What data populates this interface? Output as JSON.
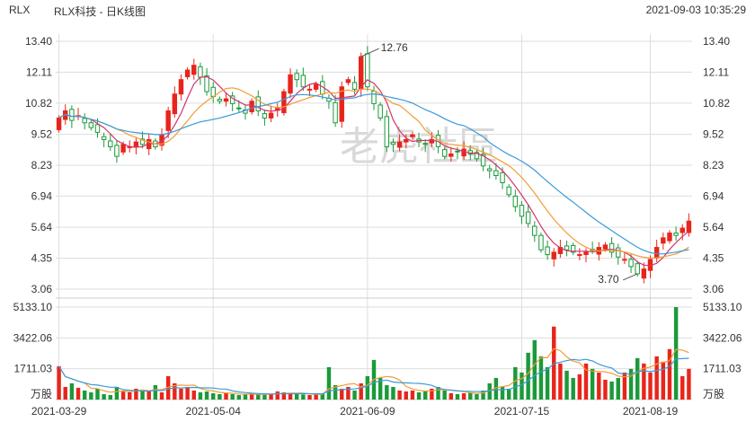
{
  "header": {
    "symbol": "RLX",
    "name": "RLX科技 - 日K线图",
    "datetime": "2021-09-03 10:35:29"
  },
  "watermark": "老虎社區",
  "colors": {
    "up": "#e8251b",
    "down": "#1a9a3a",
    "ma5": "#d6336c",
    "ma10": "#f39c33",
    "ma20": "#3a9ad9",
    "vol_ma1": "#f39c33",
    "vol_ma2": "#3a9ad9",
    "grid": "#dddddd",
    "text": "#333333"
  },
  "chart_data": [
    {
      "type": "candlestick",
      "title": "RLX科技 - 日K线图",
      "y_ticks": [
        "13.40",
        "12.11",
        "10.82",
        "9.52",
        "8.23",
        "6.94",
        "5.64",
        "4.35",
        "3.06"
      ],
      "ylim": [
        3.06,
        13.4
      ],
      "x_tick_labels": [
        "2021-03-29",
        "2021-05-04",
        "2021-06-09",
        "2021-07-15",
        "2021-08-19"
      ],
      "annotations": [
        {
          "text": "12.76",
          "value": 12.76
        },
        {
          "text": "3.70",
          "value": 3.7
        }
      ],
      "ohlc_close": [
        10.2,
        10.5,
        10.1,
        10.3,
        10.0,
        9.8,
        9.6,
        9.3,
        9.0,
        8.6,
        9.1,
        9.0,
        9.2,
        9.1,
        9.3,
        9.0,
        9.5,
        10.5,
        11.2,
        11.8,
        12.2,
        12.4,
        11.9,
        11.3,
        11.1,
        10.9,
        11.0,
        10.8,
        10.6,
        10.4,
        10.9,
        10.5,
        10.2,
        10.4,
        10.6,
        11.3,
        12.0,
        11.8,
        11.5,
        11.4,
        11.6,
        11.2,
        10.9,
        10.0,
        11.5,
        11.8,
        11.4,
        12.76,
        11.5,
        10.8,
        10.2,
        9.0,
        9.1,
        9.2,
        9.3,
        9.5,
        9.2,
        9.1,
        9.3,
        9.0,
        8.6,
        8.7,
        8.8,
        8.9,
        8.7,
        8.5,
        8.2,
        8.0,
        7.8,
        7.5,
        7.0,
        6.5,
        6.1,
        5.8,
        5.3,
        4.7,
        4.5,
        4.6,
        4.8,
        4.7,
        4.6,
        4.5,
        4.6,
        4.7,
        4.8,
        4.9,
        4.6,
        4.4,
        4.3,
        4.0,
        3.7,
        3.9,
        4.3,
        4.8,
        5.2,
        5.4,
        5.3,
        5.6,
        5.9
      ],
      "volume": [
        1850,
        700,
        900,
        650,
        500,
        400,
        600,
        300,
        250,
        700,
        500,
        400,
        600,
        500,
        450,
        800,
        400,
        1300,
        900,
        600,
        700,
        500,
        400,
        450,
        350,
        300,
        350,
        300,
        250,
        300,
        350,
        280,
        260,
        300,
        450,
        400,
        350,
        300,
        280,
        250,
        300,
        350,
        1800,
        800,
        600,
        700,
        500,
        900,
        1300,
        2200,
        1200,
        800,
        700,
        500,
        450,
        500,
        400,
        500,
        600,
        700,
        500,
        350,
        300,
        350,
        400,
        300,
        500,
        900,
        1200,
        700,
        600,
        1800,
        1500,
        2600,
        3300,
        2400,
        1800,
        4050,
        2000,
        1600,
        1200,
        1400,
        2000,
        1700,
        1500,
        1100,
        1000,
        1200,
        1500,
        1700,
        2300,
        2000,
        1500,
        2400,
        2100,
        2800,
        5133,
        1300,
        1700
      ],
      "volume_y_ticks": [
        "5133.10",
        "3422.06",
        "1711.03",
        "万股"
      ],
      "volume_ylim": [
        0,
        5133.1
      ]
    }
  ]
}
